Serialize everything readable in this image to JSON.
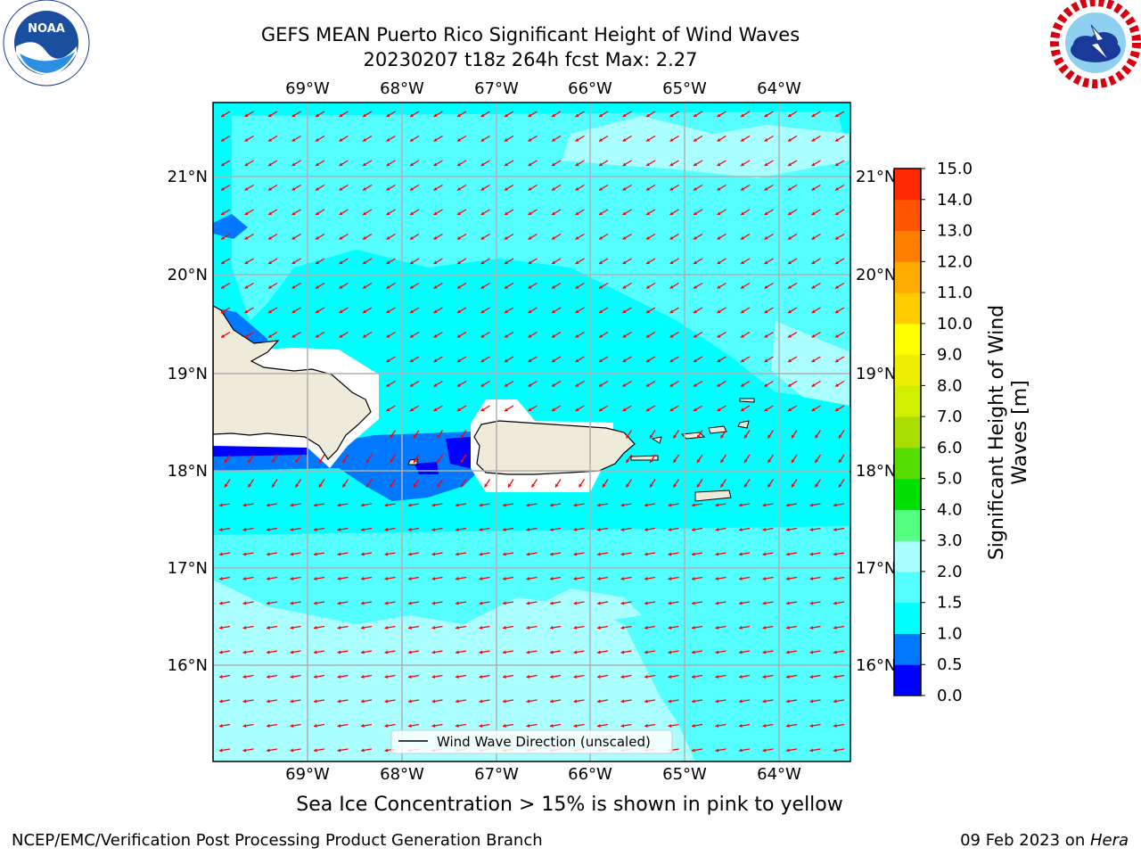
{
  "header": {
    "title_line1": "GEFS MEAN Puerto Rico Significant Height of Wind Waves",
    "title_line2": "20230207 t18z 264h fcst   Max: 2.27"
  },
  "logos": {
    "left": {
      "name": "NOAA",
      "ring_text": "NATIONAL OCEANIC AND ATMOSPHERIC ADMINISTRATION",
      "bottom_text": "U.S. DEPARTMENT OF COMMERCE"
    },
    "right": {
      "ring_text": "NATIONAL WEATHER SERVICE"
    }
  },
  "map": {
    "lon_labels": [
      "69°W",
      "68°W",
      "67°W",
      "66°W",
      "65°W",
      "64°W"
    ],
    "lat_labels": [
      "21°N",
      "20°N",
      "19°N",
      "18°N",
      "17°N",
      "16°N"
    ],
    "colors": {
      "ocean_base": "#00ffff",
      "land": "#efebdb",
      "arrow": "#ff0000",
      "grid": "#b0b0b0"
    }
  },
  "legend": {
    "label": "Wind Wave Direction (unscaled)"
  },
  "colorbar": {
    "label": "Significant Height of Wind Waves [m]",
    "ticks": [
      "0.0",
      "0.5",
      "1.0",
      "1.5",
      "2.0",
      "3.0",
      "4.0",
      "5.0",
      "6.0",
      "7.0",
      "8.0",
      "9.0",
      "10.0",
      "11.0",
      "12.0",
      "13.0",
      "14.0",
      "15.0"
    ],
    "colors": [
      "#0000ff",
      "#0078ff",
      "#00ffff",
      "#55ffff",
      "#aaffff",
      "#55ff80",
      "#00e000",
      "#55dd00",
      "#aadd00",
      "#d0ee00",
      "#eeee00",
      "#ffff00",
      "#ffcc00",
      "#ffaa00",
      "#ff8000",
      "#ff5500",
      "#ff2a00",
      "#ff0000"
    ]
  },
  "footer": {
    "subtitle": "Sea Ice Concentration > 15% is shown in pink to yellow",
    "left": "NCEP/EMC/Verification Post Processing Product Generation Branch",
    "right_date": "09 Feb 2023 on ",
    "right_host": "Hera"
  }
}
